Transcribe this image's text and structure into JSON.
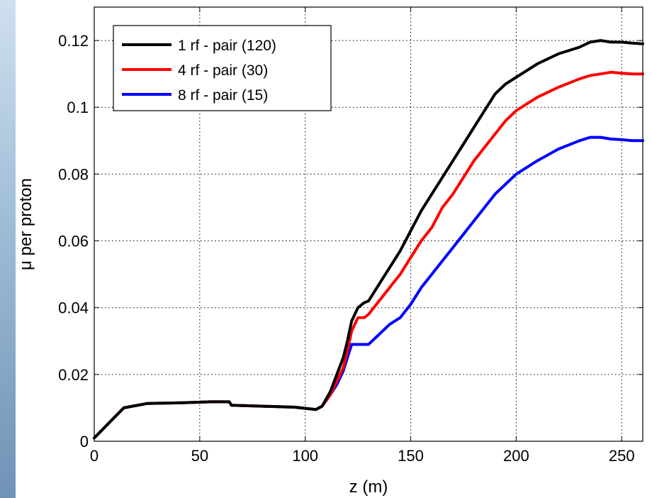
{
  "chart_data": {
    "type": "line",
    "xlabel": "z (m)",
    "ylabel": "μ per proton",
    "xlim": [
      0,
      260
    ],
    "ylim": [
      0,
      0.13
    ],
    "xticks": [
      0,
      50,
      100,
      150,
      200,
      250
    ],
    "xtick_labels": [
      "0",
      "50",
      "100",
      "150",
      "200",
      "250"
    ],
    "yticks": [
      0,
      0.02,
      0.04,
      0.06,
      0.08,
      0.1,
      0.12
    ],
    "ytick_labels": [
      "0",
      "0.02",
      "0.04",
      "0.06",
      "0.08",
      "0.1",
      "0.12"
    ],
    "grid": true,
    "legend_position": "top-left",
    "series": [
      {
        "name": "1 rf - pair (120)",
        "color": "#000000",
        "x": [
          0,
          14,
          25,
          40,
          55,
          64,
          65,
          80,
          95,
          105,
          108,
          112,
          115,
          118,
          120,
          122,
          125,
          128,
          130,
          133,
          137,
          140,
          145,
          150,
          155,
          160,
          165,
          170,
          175,
          180,
          185,
          190,
          195,
          200,
          210,
          220,
          230,
          235,
          240,
          245,
          250,
          255,
          260
        ],
        "y": [
          0.001,
          0.01,
          0.0113,
          0.0115,
          0.0118,
          0.0118,
          0.0108,
          0.0105,
          0.0102,
          0.0095,
          0.0105,
          0.015,
          0.02,
          0.025,
          0.03,
          0.036,
          0.04,
          0.0415,
          0.042,
          0.045,
          0.049,
          0.052,
          0.057,
          0.063,
          0.069,
          0.074,
          0.079,
          0.084,
          0.089,
          0.094,
          0.099,
          0.104,
          0.107,
          0.109,
          0.113,
          0.116,
          0.118,
          0.1195,
          0.12,
          0.1195,
          0.1195,
          0.1192,
          0.119
        ]
      },
      {
        "name": "4 rf - pair (30)",
        "color": "#ff0000",
        "x": [
          0,
          14,
          25,
          40,
          55,
          64,
          65,
          80,
          95,
          105,
          108,
          112,
          115,
          118,
          120,
          122,
          125,
          128,
          130,
          135,
          140,
          145,
          150,
          155,
          160,
          165,
          170,
          175,
          180,
          185,
          190,
          195,
          200,
          210,
          220,
          230,
          235,
          240,
          245,
          250,
          255,
          260
        ],
        "y": [
          0.001,
          0.01,
          0.0113,
          0.0115,
          0.0118,
          0.0118,
          0.0108,
          0.0105,
          0.0102,
          0.0095,
          0.0105,
          0.014,
          0.018,
          0.022,
          0.027,
          0.033,
          0.037,
          0.037,
          0.038,
          0.042,
          0.046,
          0.05,
          0.055,
          0.06,
          0.064,
          0.07,
          0.074,
          0.079,
          0.084,
          0.088,
          0.092,
          0.096,
          0.099,
          0.103,
          0.106,
          0.1085,
          0.1095,
          0.11,
          0.1105,
          0.1102,
          0.11,
          0.11
        ]
      },
      {
        "name": "8 rf - pair (15)",
        "color": "#0000ff",
        "x": [
          0,
          14,
          25,
          40,
          55,
          64,
          65,
          80,
          95,
          105,
          108,
          112,
          115,
          118,
          120,
          122,
          125,
          128,
          130,
          135,
          140,
          145,
          150,
          155,
          160,
          165,
          170,
          175,
          180,
          185,
          190,
          195,
          200,
          210,
          220,
          230,
          235,
          240,
          245,
          250,
          255,
          260
        ],
        "y": [
          0.001,
          0.01,
          0.0113,
          0.0115,
          0.0118,
          0.0118,
          0.0108,
          0.0105,
          0.0102,
          0.0095,
          0.0105,
          0.014,
          0.017,
          0.021,
          0.025,
          0.029,
          0.029,
          0.029,
          0.029,
          0.032,
          0.035,
          0.037,
          0.041,
          0.046,
          0.05,
          0.054,
          0.058,
          0.062,
          0.066,
          0.07,
          0.074,
          0.077,
          0.08,
          0.084,
          0.0875,
          0.09,
          0.091,
          0.091,
          0.0905,
          0.0903,
          0.09,
          0.09
        ]
      }
    ]
  }
}
